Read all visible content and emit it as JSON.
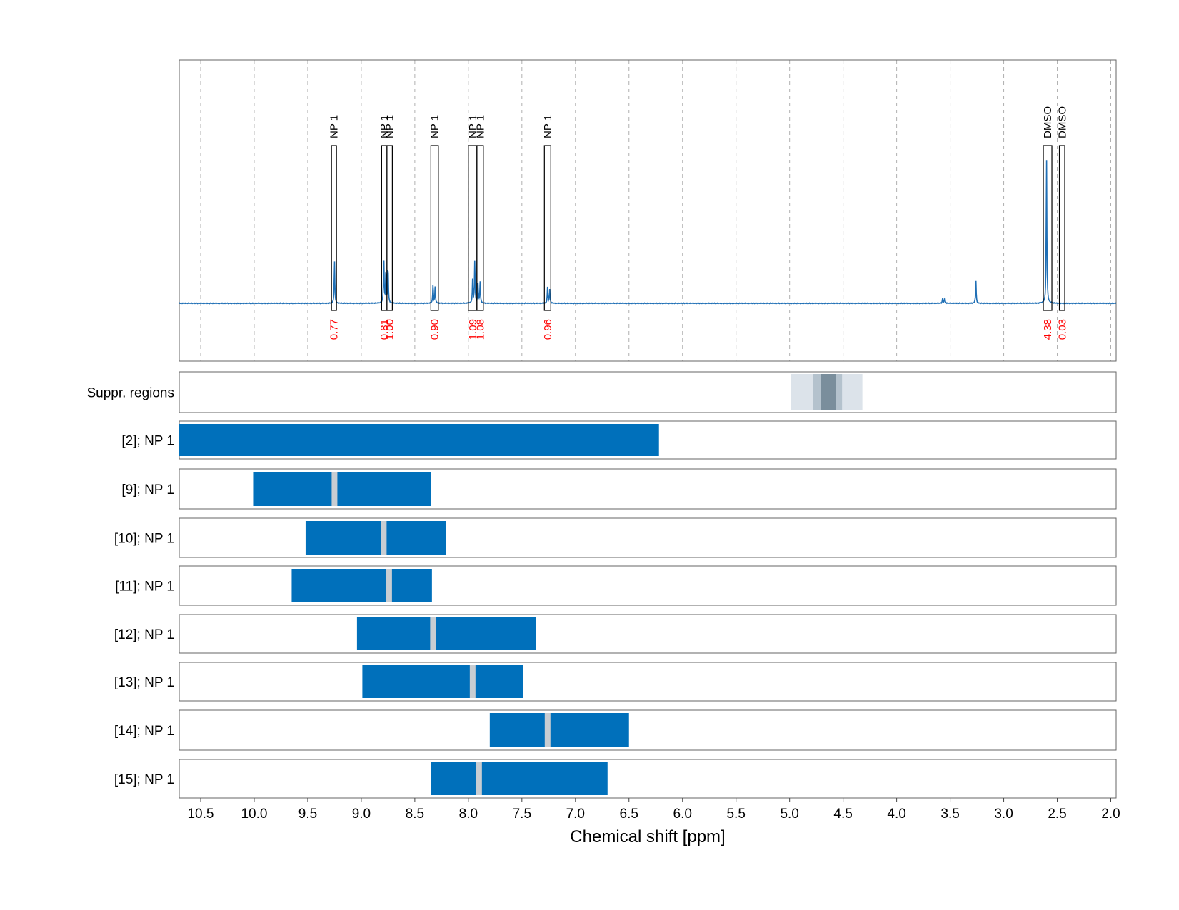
{
  "chart_data": {
    "type": "nmr_spectrum_with_range_bars",
    "xlabel": "Chemical shift [ppm]",
    "xlim": [
      10.7,
      1.95
    ],
    "x_ticks": [
      "10.5",
      "10.0",
      "9.5",
      "9.0",
      "8.5",
      "8.0",
      "7.5",
      "7.0",
      "6.5",
      "6.0",
      "5.5",
      "5.0",
      "4.5",
      "4.0",
      "3.5",
      "3.0",
      "2.5",
      "2.0"
    ],
    "tick_values": [
      10.5,
      10.0,
      9.5,
      9.0,
      8.5,
      8.0,
      7.5,
      7.0,
      6.5,
      6.0,
      5.5,
      5.0,
      4.5,
      4.0,
      3.5,
      3.0,
      2.5,
      2.0
    ],
    "grid": true,
    "spectrum": {
      "color": "#1f6fb5",
      "peaks": [
        {
          "ppm": 9.25,
          "height": 0.18
        },
        {
          "ppm": 8.79,
          "height": 0.21
        },
        {
          "ppm": 8.77,
          "height": 0.14
        },
        {
          "ppm": 8.75,
          "height": 0.16
        },
        {
          "ppm": 8.33,
          "height": 0.08
        },
        {
          "ppm": 8.31,
          "height": 0.07
        },
        {
          "ppm": 7.96,
          "height": 0.1
        },
        {
          "ppm": 7.94,
          "height": 0.18
        },
        {
          "ppm": 7.91,
          "height": 0.08
        },
        {
          "ppm": 7.89,
          "height": 0.09
        },
        {
          "ppm": 7.26,
          "height": 0.07
        },
        {
          "ppm": 7.24,
          "height": 0.06
        },
        {
          "ppm": 3.57,
          "height": 0.025
        },
        {
          "ppm": 3.55,
          "height": 0.025
        },
        {
          "ppm": 3.26,
          "height": 0.1
        },
        {
          "ppm": 2.6,
          "height": 0.62
        }
      ]
    },
    "peak_annotations": [
      {
        "label": "NP 1",
        "integral": "0.77",
        "ppm_left": 9.27,
        "ppm_right": 9.24
      },
      {
        "label": "NP 1",
        "integral": "0.81",
        "ppm_left": 8.81,
        "ppm_right": 8.76
      },
      {
        "label": "NP 1",
        "integral": "1.00",
        "ppm_left": 8.76,
        "ppm_right": 8.71
      },
      {
        "label": "NP 1",
        "integral": "0.90",
        "ppm_left": 8.35,
        "ppm_right": 8.28
      },
      {
        "label": "NP 1",
        "integral": "1.09",
        "ppm_left": 8.0,
        "ppm_right": 7.92
      },
      {
        "label": "NP 1",
        "integral": "1.08",
        "ppm_left": 7.92,
        "ppm_right": 7.86
      },
      {
        "label": "NP 1",
        "integral": "0.96",
        "ppm_left": 7.29,
        "ppm_right": 7.23
      },
      {
        "label": "DMSO",
        "integral": "4.38",
        "ppm_left": 2.63,
        "ppm_right": 2.55
      },
      {
        "label": "DMSO",
        "integral": "0.03",
        "ppm_left": 2.48,
        "ppm_right": 2.43
      }
    ],
    "suppressed_regions": {
      "label": "Suppr. regions",
      "regions": [
        {
          "from": 4.99,
          "to": 4.32,
          "color": "#dce3ea"
        },
        {
          "from": 4.78,
          "to": 4.51,
          "color": "#b4c2cd"
        },
        {
          "from": 4.71,
          "to": 4.57,
          "color": "#7a8e9c"
        }
      ]
    },
    "range_rows": [
      {
        "label": "[2]; NP 1",
        "from": 10.7,
        "to": 6.22,
        "marker": null
      },
      {
        "label": "[9]; NP 1",
        "from": 10.01,
        "to": 8.35,
        "marker": 9.25
      },
      {
        "label": "[10]; NP 1",
        "from": 9.52,
        "to": 8.21,
        "marker": 8.79
      },
      {
        "label": "[11]; NP 1",
        "from": 9.65,
        "to": 8.34,
        "marker": 8.74
      },
      {
        "label": "[12]; NP 1",
        "from": 9.04,
        "to": 7.37,
        "marker": 8.33
      },
      {
        "label": "[13]; NP 1",
        "from": 8.99,
        "to": 7.49,
        "marker": 7.96
      },
      {
        "label": "[14]; NP 1",
        "from": 7.8,
        "to": 6.5,
        "marker": 7.26
      },
      {
        "label": "[15]; NP 1",
        "from": 8.35,
        "to": 6.7,
        "marker": 7.9
      }
    ],
    "bar_color": "#0070bb",
    "marker_color": "#c8cdd2"
  }
}
